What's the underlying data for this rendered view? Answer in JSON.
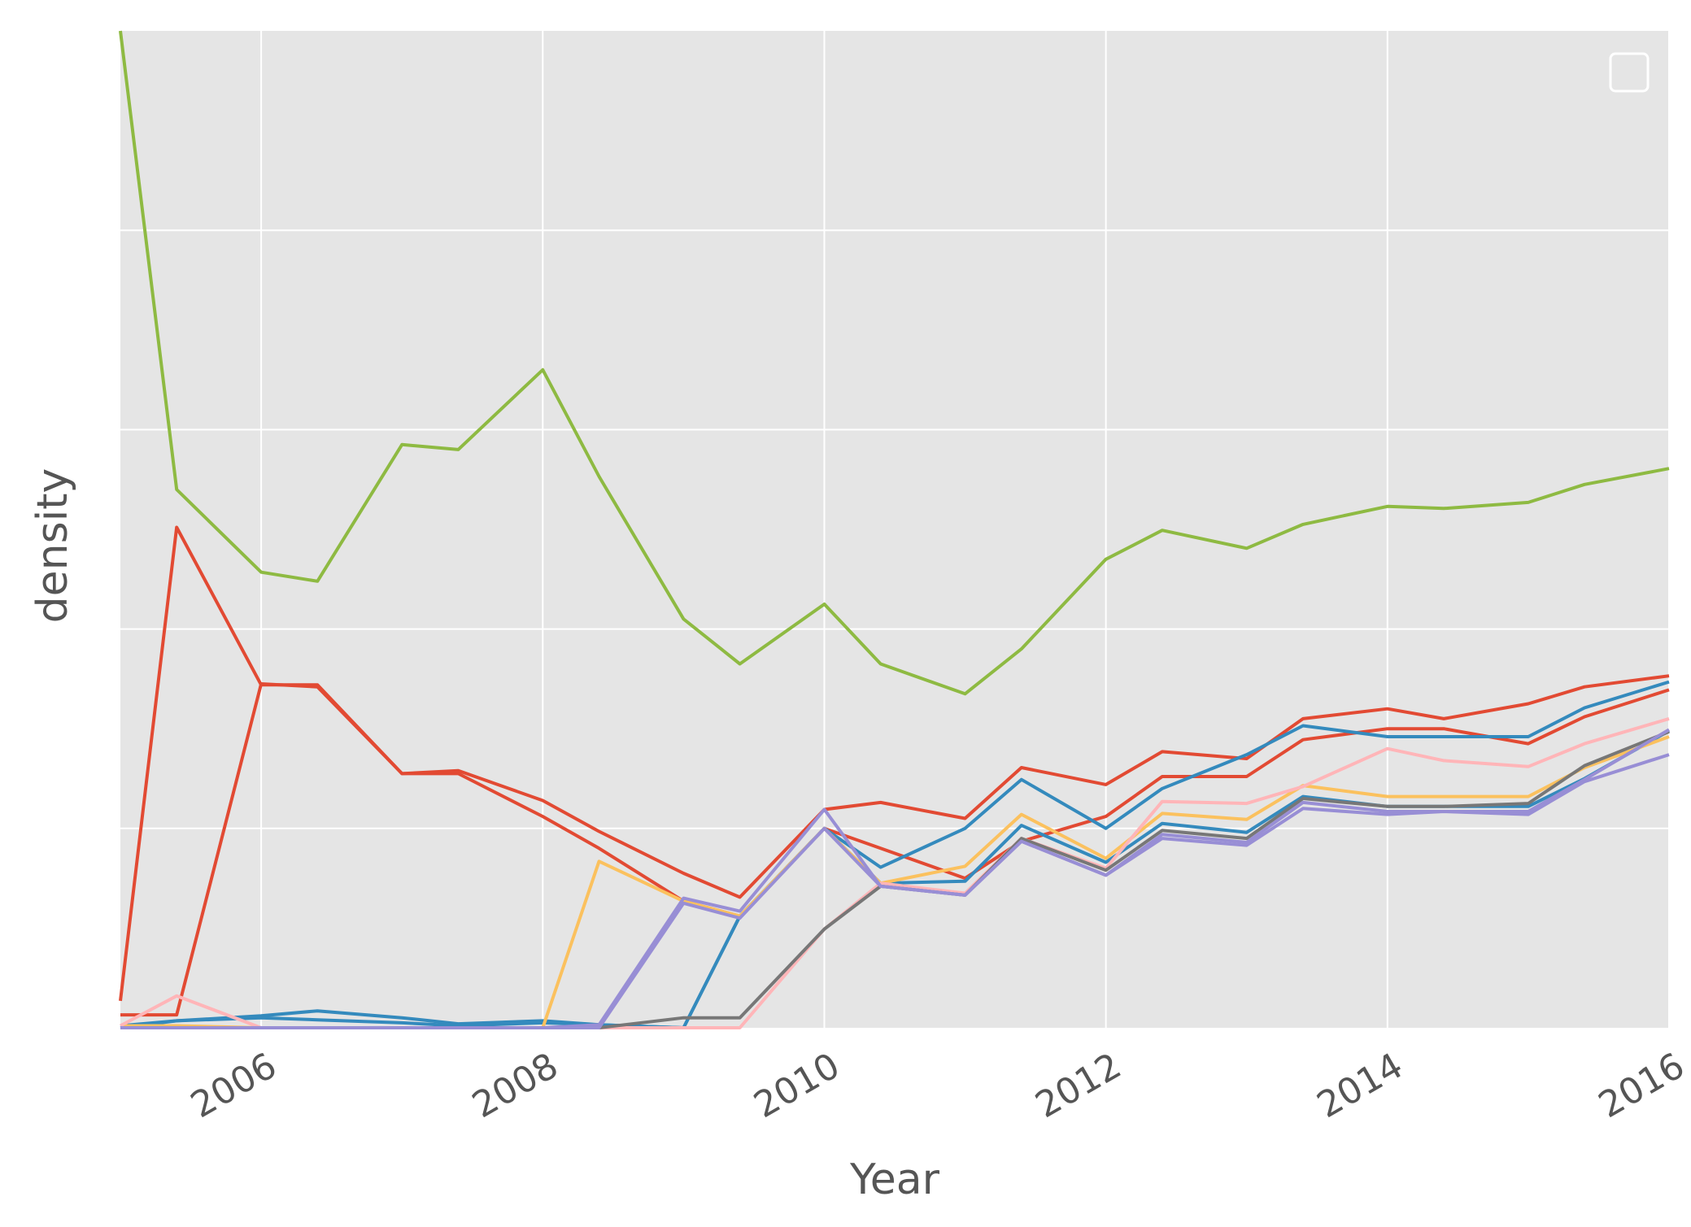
{
  "chart_data": {
    "type": "line",
    "title": "",
    "xlabel": "Year",
    "ylabel": "density",
    "xlim": [
      2005.0,
      2016.0
    ],
    "ylim": [
      0,
      1.0
    ],
    "x_ticks": [
      "2006",
      "2008",
      "2010",
      "2012",
      "2014",
      "2016"
    ],
    "y_tick_labels_shown": false,
    "grid": true,
    "legend": {
      "placement": "top-right",
      "entries": []
    },
    "colors": {
      "background": "#E5E5E5",
      "grid": "#FFFFFF",
      "green": "#8EBA42",
      "red": "#E24A33",
      "blue": "#348ABD",
      "orange": "#FBC15E",
      "purple": "#988ED5",
      "gray": "#777777",
      "pink": "#FFB5B8"
    },
    "x": [
      2005.0,
      2005.4,
      2006.0,
      2006.4,
      2007.0,
      2007.4,
      2008.0,
      2008.4,
      2009.0,
      2009.4,
      2010.0,
      2010.4,
      2011.0,
      2011.4,
      2012.0,
      2012.4,
      2013.0,
      2013.4,
      2014.0,
      2014.4,
      2015.0,
      2015.4,
      2016.0
    ],
    "series": [
      {
        "color": "#8EBA42",
        "values": [
          1.0,
          0.54,
          0.457,
          0.448,
          0.585,
          0.58,
          0.66,
          0.553,
          0.41,
          0.365,
          0.425,
          0.365,
          0.335,
          0.38,
          0.47,
          0.499,
          0.481,
          0.505,
          0.523,
          0.521,
          0.527,
          0.545,
          0.561
        ]
      },
      {
        "color": "#E24A33",
        "values": [
          0.027,
          0.502,
          0.344,
          0.344,
          0.255,
          0.258,
          0.228,
          0.197,
          0.155,
          0.131,
          0.219,
          0.226,
          0.21,
          0.261,
          0.244,
          0.277,
          0.27,
          0.31,
          0.32,
          0.31,
          0.325,
          0.342,
          0.353
        ]
      },
      {
        "color": "#E24A33",
        "values": [
          0.013,
          0.013,
          0.345,
          0.342,
          0.255,
          0.255,
          0.212,
          0.18,
          0.127,
          0.112,
          0.2,
          0.18,
          0.15,
          0.187,
          0.212,
          0.252,
          0.252,
          0.289,
          0.3,
          0.3,
          0.285,
          0.312,
          0.339
        ]
      },
      {
        "color": "#348ABD",
        "values": [
          0.0,
          0.007,
          0.012,
          0.017,
          0.01,
          0.004,
          0.007,
          0.003,
          0.0,
          0.112,
          0.2,
          0.161,
          0.2,
          0.249,
          0.2,
          0.24,
          0.274,
          0.303,
          0.292,
          0.292,
          0.292,
          0.321,
          0.347
        ]
      },
      {
        "color": "#348ABD",
        "values": [
          0.002,
          0.007,
          0.01,
          0.008,
          0.005,
          0.002,
          0.005,
          0.003,
          0.0,
          0.112,
          0.2,
          0.145,
          0.147,
          0.203,
          0.166,
          0.205,
          0.196,
          0.232,
          0.222,
          0.222,
          0.222,
          0.25,
          0.298
        ]
      },
      {
        "color": "#FBC15E",
        "values": [
          0.002,
          0.002,
          0.0,
          0.0,
          0.0,
          0.0,
          0.0,
          0.167,
          0.127,
          0.112,
          0.2,
          0.145,
          0.162,
          0.214,
          0.17,
          0.215,
          0.209,
          0.243,
          0.232,
          0.232,
          0.232,
          0.261,
          0.292
        ]
      },
      {
        "color": "#FFB5B8",
        "values": [
          0.002,
          0.032,
          0.0,
          0.0,
          0.0,
          0.0,
          0.0,
          0.0,
          0.0,
          0.0,
          0.099,
          0.145,
          0.135,
          0.19,
          0.16,
          0.227,
          0.225,
          0.242,
          0.28,
          0.268,
          0.262,
          0.285,
          0.31
        ]
      },
      {
        "color": "#777777",
        "values": [
          0.0,
          0.0,
          0.0,
          0.0,
          0.0,
          0.0,
          0.0,
          0.0,
          0.01,
          0.01,
          0.099,
          0.142,
          0.133,
          0.19,
          0.158,
          0.198,
          0.19,
          0.23,
          0.222,
          0.222,
          0.225,
          0.263,
          0.297
        ]
      },
      {
        "color": "#988ED5",
        "values": [
          0.0,
          0.0,
          0.0,
          0.0,
          0.0,
          0.0,
          0.0,
          0.003,
          0.13,
          0.117,
          0.219,
          0.142,
          0.133,
          0.187,
          0.153,
          0.194,
          0.186,
          0.226,
          0.217,
          0.217,
          0.217,
          0.249,
          0.299
        ]
      },
      {
        "color": "#988ED5",
        "values": [
          0.0,
          0.0,
          0.0,
          0.0,
          0.0,
          0.0,
          0.0,
          0.0,
          0.125,
          0.11,
          0.2,
          0.142,
          0.133,
          0.187,
          0.153,
          0.19,
          0.183,
          0.22,
          0.214,
          0.217,
          0.214,
          0.247,
          0.274
        ]
      }
    ]
  }
}
